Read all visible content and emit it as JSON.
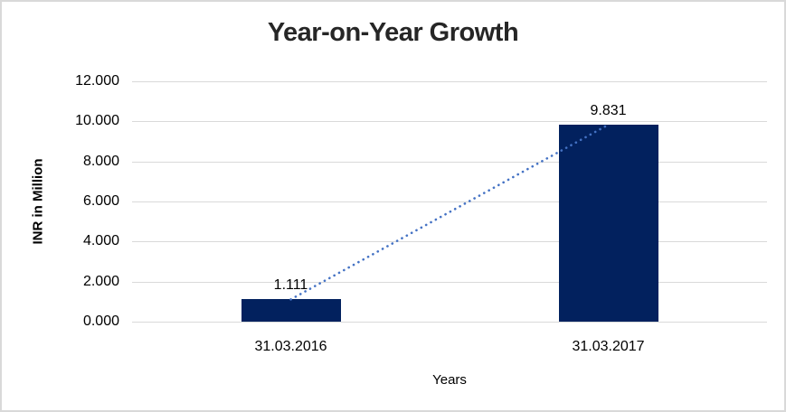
{
  "chart_data": {
    "type": "bar",
    "title": "Year-on-Year Growth",
    "xlabel": "Years",
    "ylabel": "INR in Million",
    "categories": [
      "31.03.2016",
      "31.03.2017"
    ],
    "values": [
      1.111,
      9.831
    ],
    "data_labels": [
      "1.111",
      "9.831"
    ],
    "ylim": [
      0,
      12
    ],
    "y_ticks": [
      "0.000",
      "2.000",
      "4.000",
      "6.000",
      "8.000",
      "10.000",
      "12.000"
    ],
    "grid": true,
    "legend": "none",
    "trendline": {
      "type": "linear",
      "style": "dotted",
      "color": "#4472c4"
    }
  },
  "colors": {
    "bar": "#02215e",
    "trendline": "#4472c4",
    "grid": "#d9d9d9",
    "frame_border": "#d9d9d9",
    "axis_text": "#000000",
    "title": "#262626"
  }
}
